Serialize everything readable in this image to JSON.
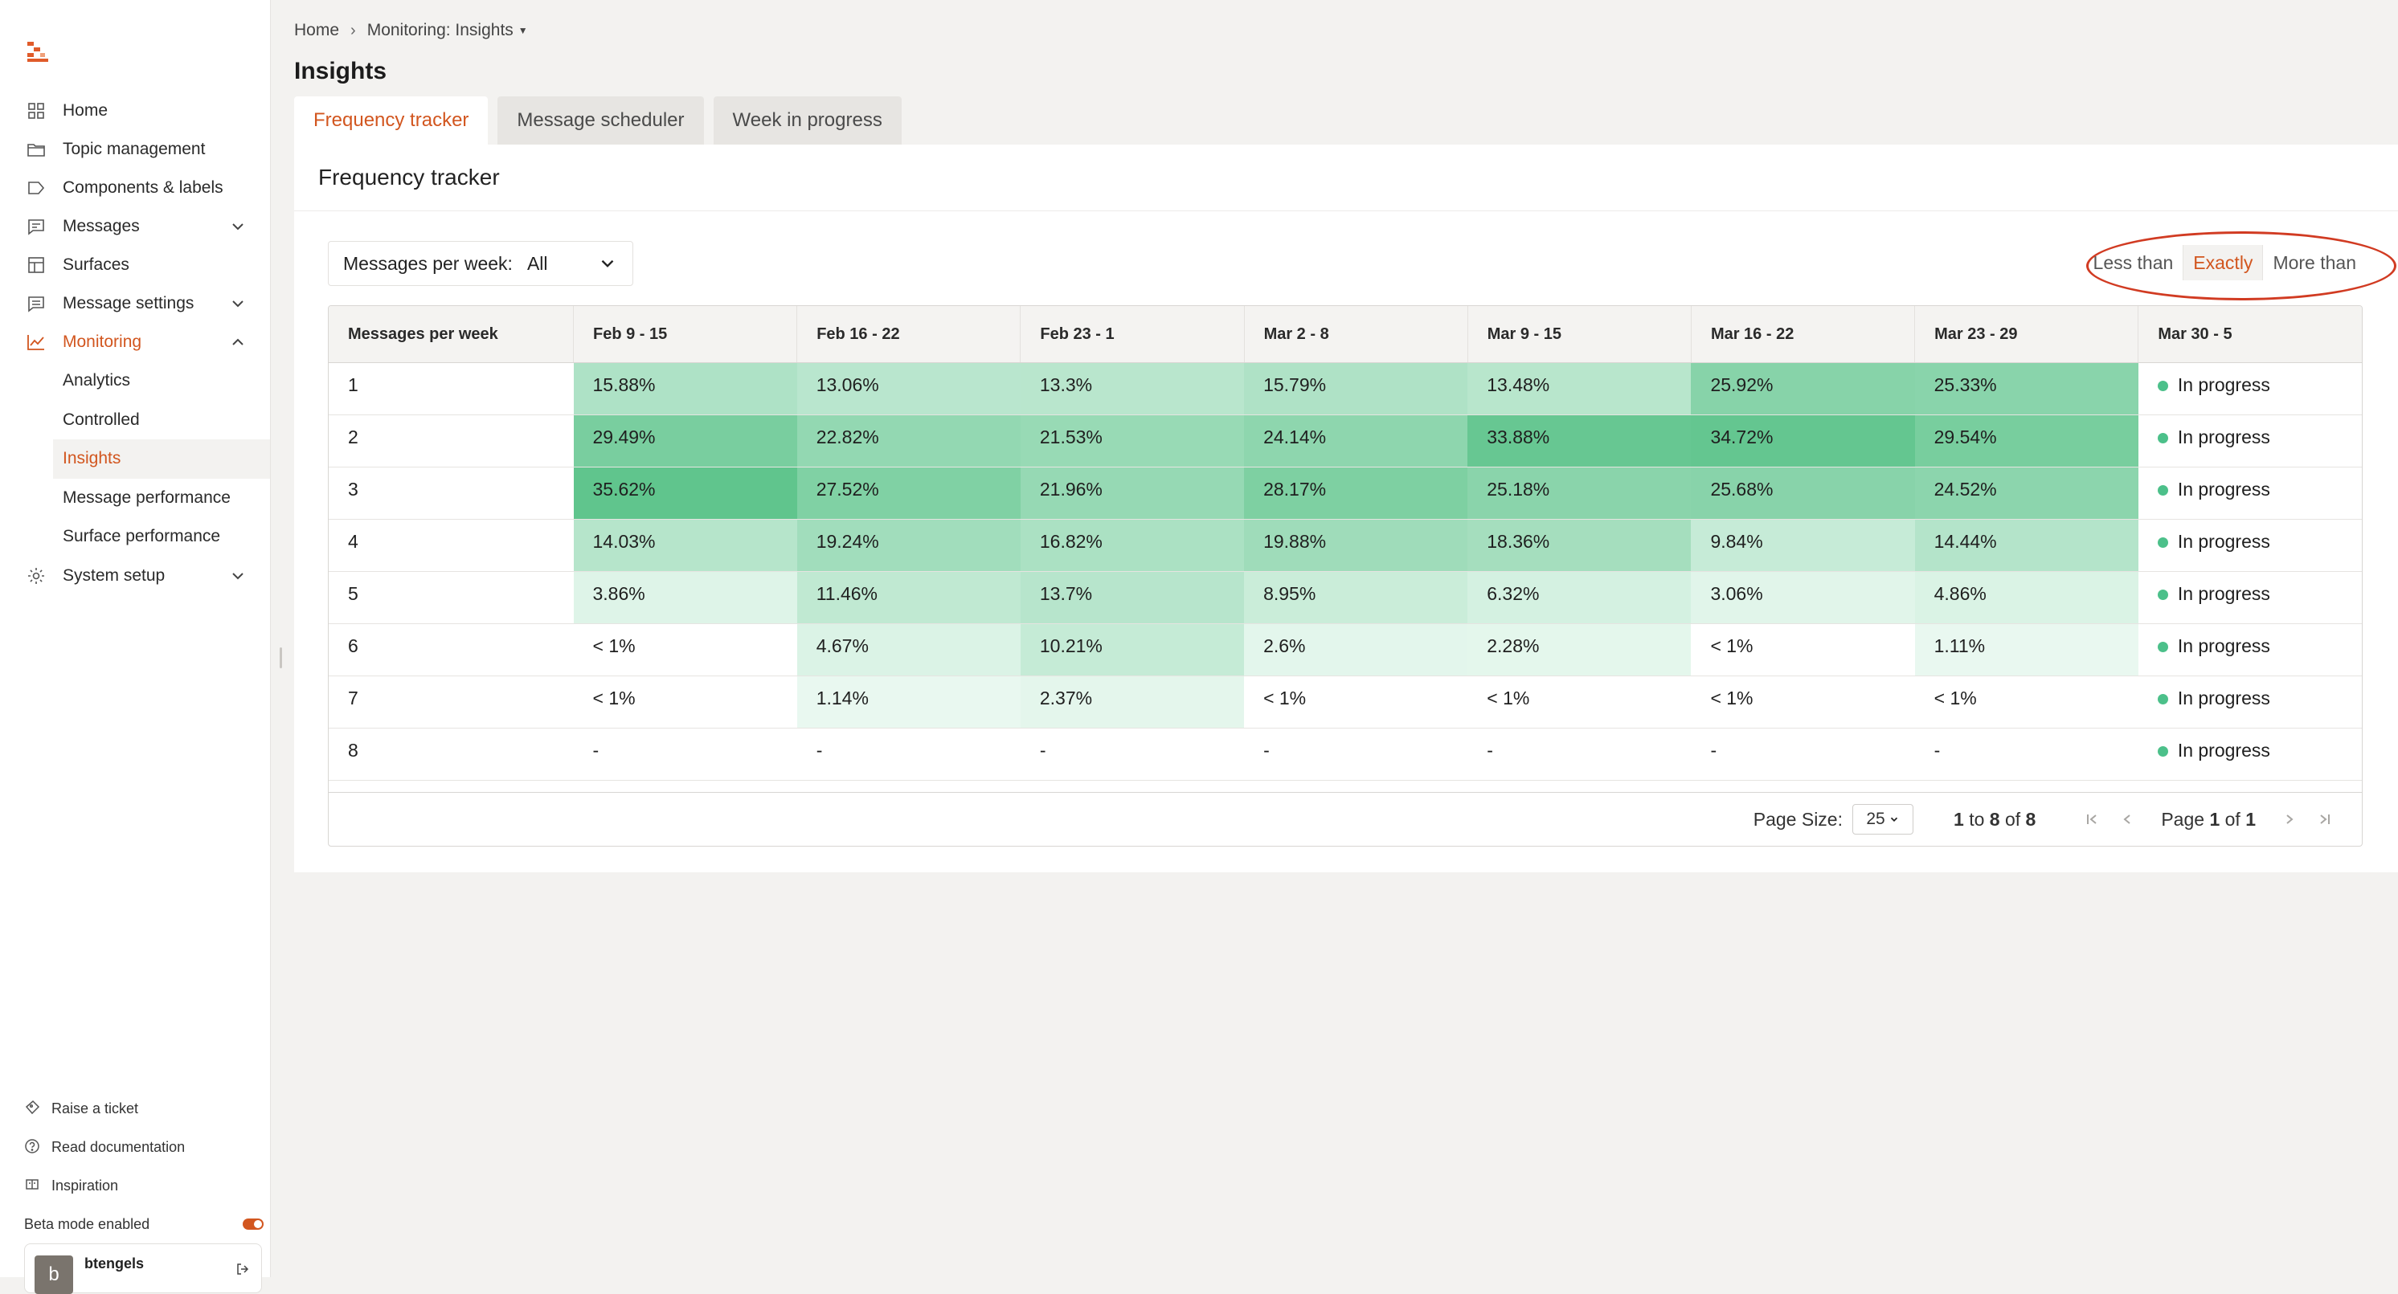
{
  "sidebar": {
    "nav": [
      {
        "label": "Home",
        "icon": "grid-icon"
      },
      {
        "label": "Topic management",
        "icon": "folder-icon"
      },
      {
        "label": "Components & labels",
        "icon": "tag-icon"
      },
      {
        "label": "Messages",
        "icon": "message-icon",
        "expandable": true
      },
      {
        "label": "Surfaces",
        "icon": "layout-icon"
      },
      {
        "label": "Message settings",
        "icon": "message-settings-icon",
        "expandable": true
      },
      {
        "label": "Monitoring",
        "icon": "chart-icon",
        "expanded": true
      }
    ],
    "monitoring_sub": [
      "Analytics",
      "Controlled",
      "Insights",
      "Message performance",
      "Surface performance"
    ],
    "system_setup": "System setup",
    "bottom_links": [
      "Raise a ticket",
      "Read documentation",
      "Inspiration"
    ],
    "beta_label": "Beta mode enabled",
    "user": {
      "name": "btengels",
      "initial": "b"
    }
  },
  "breadcrumb": {
    "home": "Home",
    "current": "Monitoring: Insights"
  },
  "page_title": "Insights",
  "tabs": [
    "Frequency tracker",
    "Message scheduler",
    "Week in progress"
  ],
  "panel_title": "Frequency tracker",
  "filter": {
    "label": "Messages per week:",
    "value": "All"
  },
  "segment": {
    "options": [
      "Less than",
      "Exactly",
      "More than"
    ],
    "selected": "Exactly"
  },
  "table": {
    "header_first": "Messages per week",
    "columns": [
      "Feb 9 - 15",
      "Feb 16 - 22",
      "Feb 23 - 1",
      "Mar 2 - 8",
      "Mar 9 - 15",
      "Mar 16 - 22",
      "Mar 23 - 29",
      "Mar 30 - 5"
    ],
    "rows": [
      {
        "label": "1",
        "cells": [
          "15.88%",
          "13.06%",
          "13.3%",
          "15.79%",
          "13.48%",
          "25.92%",
          "25.33%"
        ],
        "last": "In progress"
      },
      {
        "label": "2",
        "cells": [
          "29.49%",
          "22.82%",
          "21.53%",
          "24.14%",
          "33.88%",
          "34.72%",
          "29.54%"
        ],
        "last": "In progress"
      },
      {
        "label": "3",
        "cells": [
          "35.62%",
          "27.52%",
          "21.96%",
          "28.17%",
          "25.18%",
          "25.68%",
          "24.52%"
        ],
        "last": "In progress"
      },
      {
        "label": "4",
        "cells": [
          "14.03%",
          "19.24%",
          "16.82%",
          "19.88%",
          "18.36%",
          "9.84%",
          "14.44%"
        ],
        "last": "In progress"
      },
      {
        "label": "5",
        "cells": [
          "3.86%",
          "11.46%",
          "13.7%",
          "8.95%",
          "6.32%",
          "3.06%",
          "4.86%"
        ],
        "last": "In progress"
      },
      {
        "label": "6",
        "cells": [
          "< 1%",
          "4.67%",
          "10.21%",
          "2.6%",
          "2.28%",
          "< 1%",
          "1.11%"
        ],
        "last": "In progress"
      },
      {
        "label": "7",
        "cells": [
          "< 1%",
          "1.14%",
          "2.37%",
          "< 1%",
          "< 1%",
          "< 1%",
          "< 1%"
        ],
        "last": "In progress"
      },
      {
        "label": "8",
        "cells": [
          "-",
          "-",
          "-",
          "-",
          "-",
          "-",
          "-"
        ],
        "last": "In progress"
      }
    ]
  },
  "pagination": {
    "page_size_label": "Page Size:",
    "page_size": "25",
    "row_from": "1",
    "row_to_word": "to",
    "row_to": "8",
    "of_word": "of",
    "row_total": "8",
    "page_word": "Page",
    "page_current": "1",
    "page_of": "of",
    "page_total": "1"
  },
  "colors": {
    "accent": "#d2561f",
    "in_progress_dot": "#4cc08a"
  }
}
